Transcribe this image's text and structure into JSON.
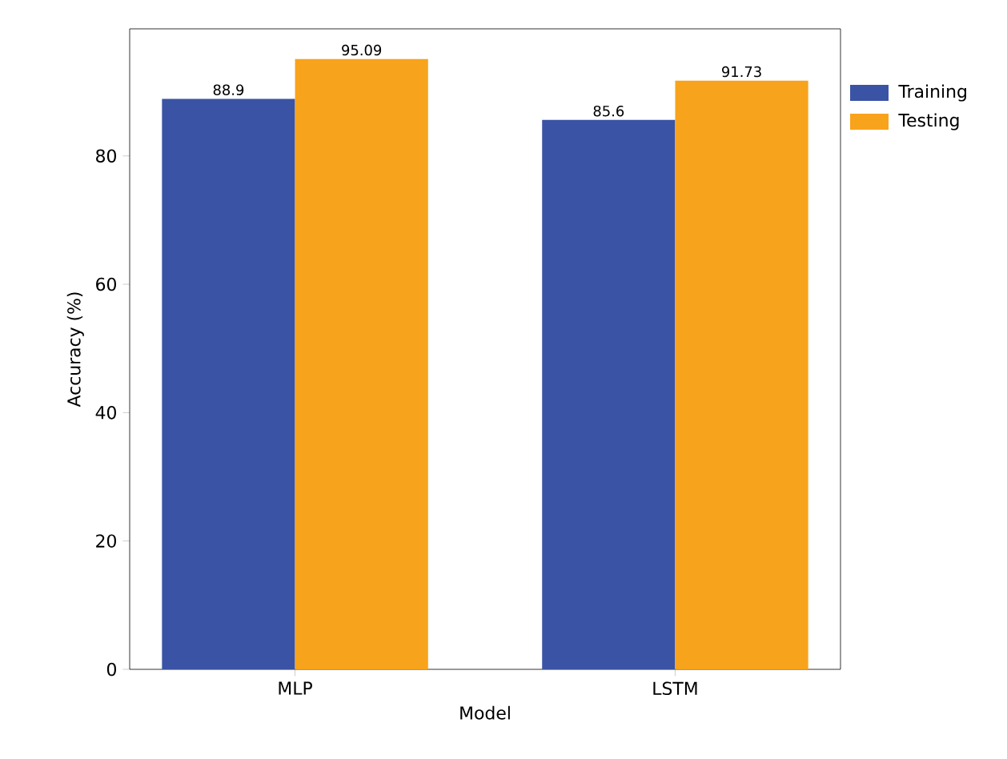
{
  "chart_data": {
    "type": "bar",
    "xlabel": "Model",
    "ylabel": "Accuracy (%)",
    "categories": [
      "MLP",
      "LSTM"
    ],
    "series": [
      {
        "name": "Training",
        "color": "#3a53a4",
        "values": [
          88.9,
          85.6
        ]
      },
      {
        "name": "Testing",
        "color": "#f8a31c",
        "values": [
          95.09,
          91.73
        ]
      }
    ],
    "ylim": [
      0,
      99.8
    ],
    "yticks": [
      0,
      20,
      40,
      60,
      80
    ],
    "data_labels": true,
    "legend": "top right"
  }
}
